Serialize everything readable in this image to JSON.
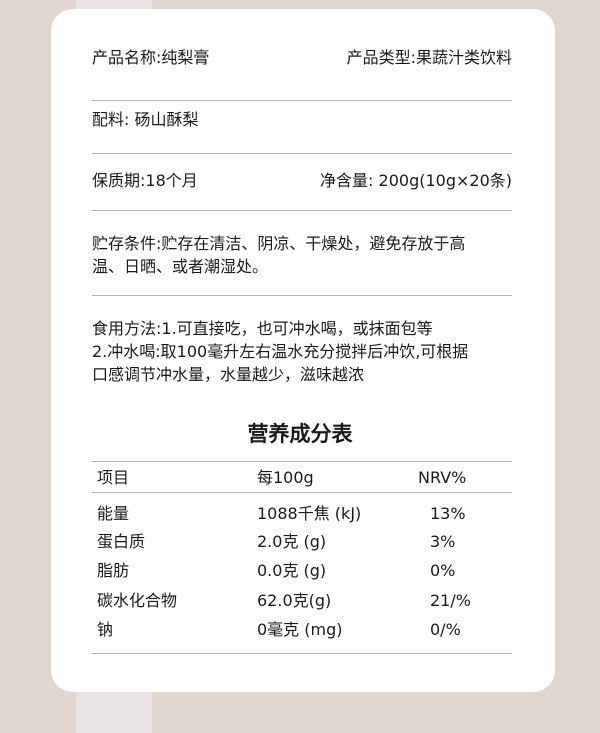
{
  "info": {
    "product_name": "产品名称:纯梨膏",
    "product_type": "产品类型:果蔬汁类饮料",
    "ingredients": "配料: 砀山酥梨",
    "shelf_life": "保质期:18个月",
    "net_content": "净含量: 200g(10g×20条)",
    "storage_line1": "贮存条件:贮存在清洁、阴凉、干燥处，避免存放于高",
    "storage_line2": "温、日晒、或者潮湿处。",
    "usage_line1": "食用方法:1.可直接吃，也可冲水喝，或抹面包等",
    "usage_line2": "2.冲水喝:取100毫升左右温水充分搅拌后冲饮,可根据",
    "usage_line3": "口感调节冲水量，水量越少，滋味越浓"
  },
  "nutrition": {
    "title": "营养成分表",
    "headers": [
      "项目",
      "每100g",
      "NRV%"
    ],
    "rows": [
      [
        "能量",
        "1088千焦 (kJ)",
        "13%"
      ],
      [
        "蛋白质",
        "2.0克 (g)",
        "3%"
      ],
      [
        "脂肪",
        "0.0克 (g)",
        "0%"
      ],
      [
        "碳水化合物",
        "62.0克(g)",
        "21/%"
      ],
      [
        "钠",
        "0毫克 (mg)",
        "0/%"
      ]
    ]
  }
}
